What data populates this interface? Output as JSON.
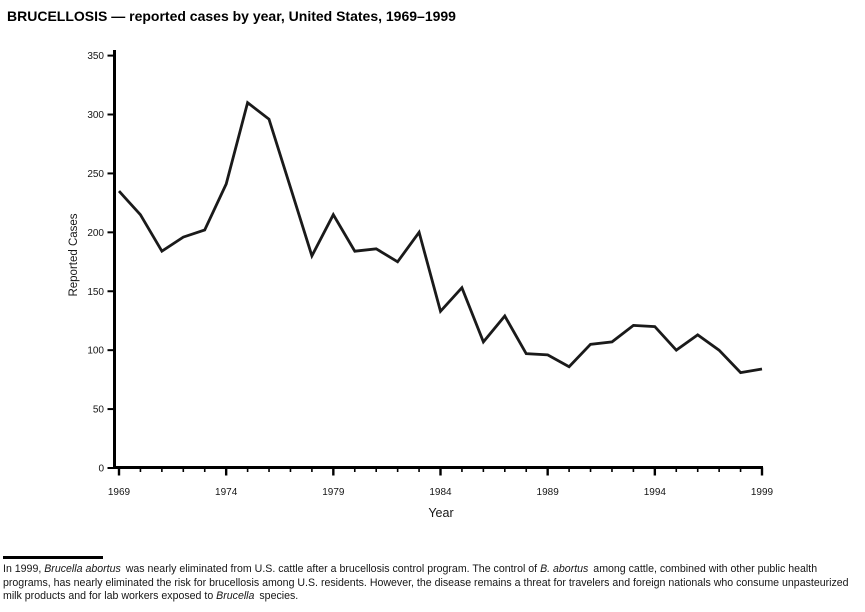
{
  "title": "BRUCELLOSIS — reported cases by year, United States, 1969–1999",
  "chart_data": {
    "type": "line",
    "title": "BRUCELLOSIS — reported cases by year, United States, 1969–1999",
    "xlabel": "Year",
    "ylabel": "Reported Cases",
    "x": [
      1969,
      1970,
      1971,
      1972,
      1973,
      1974,
      1975,
      1976,
      1977,
      1978,
      1979,
      1980,
      1981,
      1982,
      1983,
      1984,
      1985,
      1986,
      1987,
      1988,
      1989,
      1990,
      1991,
      1992,
      1993,
      1994,
      1995,
      1996,
      1997,
      1998,
      1999
    ],
    "values": [
      235,
      215,
      184,
      196,
      202,
      241,
      310,
      296,
      238,
      180,
      215,
      184,
      186,
      175,
      200,
      133,
      153,
      107,
      129,
      97,
      96,
      86,
      105,
      107,
      121,
      120,
      100,
      113,
      100,
      81,
      84
    ],
    "ylim": [
      0,
      350
    ],
    "ytick_step": 50,
    "ytick_labels": [
      "0",
      "50",
      "100",
      "150",
      "200",
      "250",
      "300",
      "350"
    ],
    "x_major_ticks": [
      1969,
      1974,
      1979,
      1984,
      1989,
      1994,
      1999
    ],
    "x_major_tick_labels": [
      "1969",
      "1974",
      "1979",
      "1984",
      "1989",
      "1994",
      "1999"
    ],
    "grid": false,
    "legend": false,
    "line_color": "#1a1a1a",
    "axis_color": "#000000"
  },
  "footnote": {
    "segments": [
      {
        "text": "In 1999, ",
        "italic": false
      },
      {
        "text": "Brucella abortus",
        "italic": true
      },
      {
        "text": " was nearly eliminated from U.S. cattle after a brucellosis control program. The control of ",
        "italic": false
      },
      {
        "text": "B. abortus",
        "italic": true
      },
      {
        "text": " among cattle, combined with other public health programs, has nearly eliminated the risk for brucellosis among U.S. residents. However, the disease remains a threat for travelers and foreign nationals who consume unpasteurized milk products and for lab workers exposed to ",
        "italic": false
      },
      {
        "text": "Brucella",
        "italic": true
      },
      {
        "text": " species.",
        "italic": false
      }
    ]
  }
}
